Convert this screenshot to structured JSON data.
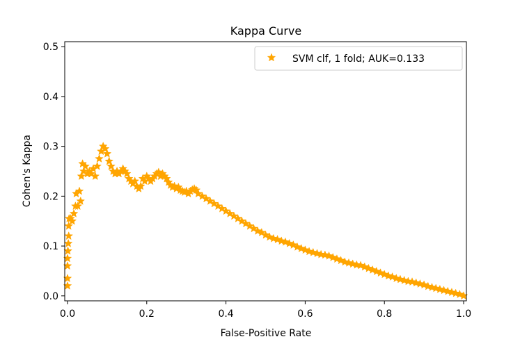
{
  "chart_data": {
    "type": "scatter",
    "title": "Kappa Curve",
    "xlabel": "False-Positive Rate",
    "ylabel": "Cohen's Kappa",
    "xlim": [
      -0.007,
      1.007
    ],
    "ylim": [
      -0.01,
      0.51
    ],
    "xticks": [
      0.0,
      0.2,
      0.4,
      0.6,
      0.8,
      1.0
    ],
    "xtick_labels": [
      "0.0",
      "0.2",
      "0.4",
      "0.6",
      "0.8",
      "1.0"
    ],
    "yticks": [
      0.0,
      0.1,
      0.2,
      0.3,
      0.4,
      0.5
    ],
    "ytick_labels": [
      "0.0",
      "0.1",
      "0.2",
      "0.3",
      "0.4",
      "0.5"
    ],
    "grid": false,
    "legend_position": "top-right",
    "marker_color": "#FFA500",
    "series": [
      {
        "name": "SVM clf, 1 fold; AUK=0.133",
        "marker": "star",
        "points": [
          [
            0.0,
            0.02
          ],
          [
            0.0,
            0.035
          ],
          [
            0.0,
            0.06
          ],
          [
            0.0,
            0.075
          ],
          [
            0.001,
            0.09
          ],
          [
            0.002,
            0.105
          ],
          [
            0.003,
            0.12
          ],
          [
            0.003,
            0.14
          ],
          [
            0.004,
            0.155
          ],
          [
            0.008,
            0.155
          ],
          [
            0.012,
            0.15
          ],
          [
            0.016,
            0.165
          ],
          [
            0.02,
            0.18
          ],
          [
            0.022,
            0.205
          ],
          [
            0.026,
            0.18
          ],
          [
            0.03,
            0.21
          ],
          [
            0.033,
            0.19
          ],
          [
            0.035,
            0.24
          ],
          [
            0.038,
            0.265
          ],
          [
            0.041,
            0.25
          ],
          [
            0.045,
            0.26
          ],
          [
            0.05,
            0.245
          ],
          [
            0.055,
            0.25
          ],
          [
            0.06,
            0.245
          ],
          [
            0.065,
            0.255
          ],
          [
            0.07,
            0.24
          ],
          [
            0.075,
            0.26
          ],
          [
            0.08,
            0.275
          ],
          [
            0.085,
            0.29
          ],
          [
            0.09,
            0.3
          ],
          [
            0.095,
            0.295
          ],
          [
            0.1,
            0.285
          ],
          [
            0.105,
            0.27
          ],
          [
            0.11,
            0.26
          ],
          [
            0.115,
            0.25
          ],
          [
            0.12,
            0.245
          ],
          [
            0.125,
            0.25
          ],
          [
            0.13,
            0.245
          ],
          [
            0.135,
            0.25
          ],
          [
            0.14,
            0.255
          ],
          [
            0.145,
            0.25
          ],
          [
            0.15,
            0.245
          ],
          [
            0.155,
            0.235
          ],
          [
            0.16,
            0.23
          ],
          [
            0.165,
            0.225
          ],
          [
            0.17,
            0.23
          ],
          [
            0.175,
            0.22
          ],
          [
            0.18,
            0.215
          ],
          [
            0.185,
            0.22
          ],
          [
            0.19,
            0.235
          ],
          [
            0.195,
            0.23
          ],
          [
            0.2,
            0.24
          ],
          [
            0.205,
            0.235
          ],
          [
            0.21,
            0.23
          ],
          [
            0.215,
            0.235
          ],
          [
            0.22,
            0.24
          ],
          [
            0.225,
            0.245
          ],
          [
            0.23,
            0.248
          ],
          [
            0.235,
            0.24
          ],
          [
            0.24,
            0.245
          ],
          [
            0.245,
            0.24
          ],
          [
            0.25,
            0.235
          ],
          [
            0.255,
            0.228
          ],
          [
            0.26,
            0.222
          ],
          [
            0.265,
            0.218
          ],
          [
            0.27,
            0.22
          ],
          [
            0.275,
            0.215
          ],
          [
            0.28,
            0.218
          ],
          [
            0.285,
            0.212
          ],
          [
            0.29,
            0.21
          ],
          [
            0.295,
            0.208
          ],
          [
            0.3,
            0.21
          ],
          [
            0.305,
            0.205
          ],
          [
            0.31,
            0.21
          ],
          [
            0.315,
            0.213
          ],
          [
            0.32,
            0.215
          ],
          [
            0.325,
            0.212
          ],
          [
            0.33,
            0.205
          ],
          [
            0.34,
            0.2
          ],
          [
            0.35,
            0.195
          ],
          [
            0.36,
            0.19
          ],
          [
            0.37,
            0.185
          ],
          [
            0.38,
            0.18
          ],
          [
            0.39,
            0.175
          ],
          [
            0.4,
            0.17
          ],
          [
            0.41,
            0.165
          ],
          [
            0.42,
            0.16
          ],
          [
            0.43,
            0.155
          ],
          [
            0.44,
            0.15
          ],
          [
            0.45,
            0.145
          ],
          [
            0.46,
            0.14
          ],
          [
            0.47,
            0.135
          ],
          [
            0.48,
            0.13
          ],
          [
            0.49,
            0.127
          ],
          [
            0.5,
            0.122
          ],
          [
            0.51,
            0.118
          ],
          [
            0.52,
            0.115
          ],
          [
            0.53,
            0.113
          ],
          [
            0.54,
            0.11
          ],
          [
            0.55,
            0.108
          ],
          [
            0.56,
            0.105
          ],
          [
            0.57,
            0.102
          ],
          [
            0.58,
            0.098
          ],
          [
            0.59,
            0.095
          ],
          [
            0.6,
            0.092
          ],
          [
            0.61,
            0.089
          ],
          [
            0.62,
            0.087
          ],
          [
            0.63,
            0.085
          ],
          [
            0.64,
            0.083
          ],
          [
            0.65,
            0.082
          ],
          [
            0.66,
            0.08
          ],
          [
            0.67,
            0.077
          ],
          [
            0.68,
            0.074
          ],
          [
            0.69,
            0.071
          ],
          [
            0.7,
            0.068
          ],
          [
            0.71,
            0.066
          ],
          [
            0.72,
            0.064
          ],
          [
            0.73,
            0.062
          ],
          [
            0.74,
            0.061
          ],
          [
            0.75,
            0.058
          ],
          [
            0.76,
            0.055
          ],
          [
            0.77,
            0.052
          ],
          [
            0.78,
            0.049
          ],
          [
            0.79,
            0.046
          ],
          [
            0.8,
            0.043
          ],
          [
            0.81,
            0.04
          ],
          [
            0.82,
            0.038
          ],
          [
            0.83,
            0.035
          ],
          [
            0.84,
            0.033
          ],
          [
            0.85,
            0.031
          ],
          [
            0.86,
            0.029
          ],
          [
            0.87,
            0.028
          ],
          [
            0.88,
            0.026
          ],
          [
            0.89,
            0.024
          ],
          [
            0.9,
            0.022
          ],
          [
            0.91,
            0.019
          ],
          [
            0.92,
            0.017
          ],
          [
            0.93,
            0.015
          ],
          [
            0.94,
            0.013
          ],
          [
            0.95,
            0.011
          ],
          [
            0.96,
            0.009
          ],
          [
            0.97,
            0.007
          ],
          [
            0.98,
            0.005
          ],
          [
            0.99,
            0.003
          ],
          [
            1.0,
            0.0
          ]
        ]
      }
    ]
  }
}
